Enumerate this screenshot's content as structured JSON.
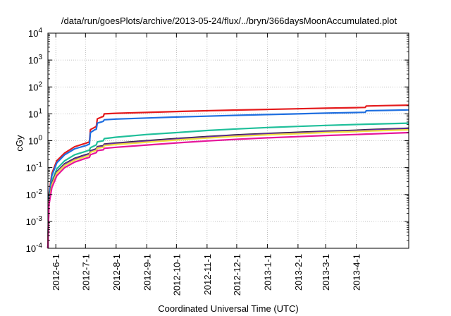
{
  "chart_data": {
    "type": "line",
    "title": "/data/run/goesPlots/archive/2013-05-24/flux/../bryn/366daysMoonAccumulated.plot",
    "xlabel": "Coordinated Universal Time (UTC)",
    "ylabel": "cGy",
    "yscale": "log",
    "ylim": [
      0.0001,
      10000
    ],
    "xlim": [
      "2012-05-24",
      "2013-05-24"
    ],
    "grid": true,
    "x_tick_labels": [
      "2012-6-1",
      "2012-7-1",
      "2012-8-1",
      "2012-9-1",
      "2012-10-1",
      "2012-11-1",
      "2012-12-1",
      "2013-1-1",
      "2013-2-1",
      "2013-3-1",
      "2013-4-1"
    ],
    "y_ticks": [
      {
        "base": "10",
        "exp": "-4",
        "value": 0.0001
      },
      {
        "base": "10",
        "exp": "-3",
        "value": 0.001
      },
      {
        "base": "10",
        "exp": "-2",
        "value": 0.01
      },
      {
        "base": "10",
        "exp": "-1",
        "value": 0.1
      },
      {
        "base": "10",
        "exp": "0",
        "value": 1
      },
      {
        "base": "10",
        "exp": "1",
        "value": 10
      },
      {
        "base": "10",
        "exp": "2",
        "value": 100
      },
      {
        "base": "10",
        "exp": "3",
        "value": 1000
      },
      {
        "base": "10",
        "exp": "4",
        "value": 10000
      }
    ],
    "series": [
      {
        "color": "#e41a1c",
        "points": [
          [
            "2012-05-24",
            0.0001
          ],
          [
            "2012-05-25",
            0.01
          ],
          [
            "2012-05-28",
            0.06
          ],
          [
            "2012-06-02",
            0.18
          ],
          [
            "2012-06-10",
            0.35
          ],
          [
            "2012-06-20",
            0.6
          ],
          [
            "2012-07-01",
            0.8
          ],
          [
            "2012-07-05",
            0.9
          ],
          [
            "2012-07-06",
            2.6
          ],
          [
            "2012-07-10",
            3.1
          ],
          [
            "2012-07-12",
            3.4
          ],
          [
            "2012-07-13",
            6.5
          ],
          [
            "2012-07-17",
            7.5
          ],
          [
            "2012-07-19",
            8.0
          ],
          [
            "2012-07-20",
            10.0
          ],
          [
            "2012-08-01",
            10.5
          ],
          [
            "2012-09-01",
            11.3
          ],
          [
            "2012-10-01",
            12.2
          ],
          [
            "2012-11-01",
            13.0
          ],
          [
            "2012-12-01",
            13.8
          ],
          [
            "2013-01-01",
            14.6
          ],
          [
            "2013-02-01",
            15.4
          ],
          [
            "2013-03-01",
            16.2
          ],
          [
            "2013-04-01",
            17.0
          ],
          [
            "2013-04-10",
            17.3
          ],
          [
            "2013-04-11",
            19.5
          ],
          [
            "2013-05-01",
            20.3
          ],
          [
            "2013-05-24",
            21.0
          ]
        ]
      },
      {
        "color": "#1f6fe0",
        "points": [
          [
            "2012-05-24",
            0.0001
          ],
          [
            "2012-05-25",
            0.008
          ],
          [
            "2012-05-28",
            0.05
          ],
          [
            "2012-06-02",
            0.15
          ],
          [
            "2012-06-10",
            0.3
          ],
          [
            "2012-06-20",
            0.5
          ],
          [
            "2012-07-01",
            0.65
          ],
          [
            "2012-07-05",
            0.75
          ],
          [
            "2012-07-06",
            2.0
          ],
          [
            "2012-07-10",
            2.5
          ],
          [
            "2012-07-12",
            2.7
          ],
          [
            "2012-07-13",
            4.5
          ],
          [
            "2012-07-17",
            5.0
          ],
          [
            "2012-07-19",
            5.3
          ],
          [
            "2012-07-20",
            6.0
          ],
          [
            "2012-08-01",
            6.4
          ],
          [
            "2012-09-01",
            7.0
          ],
          [
            "2012-10-01",
            7.6
          ],
          [
            "2012-11-01",
            8.2
          ],
          [
            "2012-12-01",
            8.8
          ],
          [
            "2013-01-01",
            9.4
          ],
          [
            "2013-02-01",
            10.0
          ],
          [
            "2013-03-01",
            10.6
          ],
          [
            "2013-04-01",
            11.2
          ],
          [
            "2013-04-10",
            11.4
          ],
          [
            "2013-04-11",
            13.0
          ],
          [
            "2013-05-01",
            13.4
          ],
          [
            "2013-05-24",
            14.0
          ]
        ]
      },
      {
        "color": "#1fbf9a",
        "points": [
          [
            "2012-05-24",
            0.0001
          ],
          [
            "2012-05-25",
            0.006
          ],
          [
            "2012-05-28",
            0.03
          ],
          [
            "2012-06-02",
            0.09
          ],
          [
            "2012-06-10",
            0.18
          ],
          [
            "2012-06-20",
            0.3
          ],
          [
            "2012-07-01",
            0.4
          ],
          [
            "2012-07-05",
            0.45
          ],
          [
            "2012-07-06",
            0.55
          ],
          [
            "2012-07-12",
            0.7
          ],
          [
            "2012-07-13",
            0.9
          ],
          [
            "2012-07-19",
            1.0
          ],
          [
            "2012-07-20",
            1.2
          ],
          [
            "2012-08-01",
            1.35
          ],
          [
            "2012-09-01",
            1.7
          ],
          [
            "2012-10-01",
            2.0
          ],
          [
            "2012-11-01",
            2.4
          ],
          [
            "2012-12-01",
            2.75
          ],
          [
            "2013-01-01",
            3.1
          ],
          [
            "2013-02-01",
            3.4
          ],
          [
            "2013-03-01",
            3.7
          ],
          [
            "2013-04-01",
            4.0
          ],
          [
            "2013-04-11",
            4.1
          ],
          [
            "2013-05-24",
            4.5
          ]
        ]
      },
      {
        "color": "#1a1a1a",
        "points": [
          [
            "2012-05-24",
            0.0001
          ],
          [
            "2012-05-25",
            0.005
          ],
          [
            "2012-05-28",
            0.025
          ],
          [
            "2012-06-02",
            0.07
          ],
          [
            "2012-06-10",
            0.14
          ],
          [
            "2012-06-20",
            0.22
          ],
          [
            "2012-07-01",
            0.3
          ],
          [
            "2012-07-05",
            0.33
          ],
          [
            "2012-07-06",
            0.42
          ],
          [
            "2012-07-12",
            0.5
          ],
          [
            "2012-07-13",
            0.6
          ],
          [
            "2012-07-19",
            0.65
          ],
          [
            "2012-07-20",
            0.75
          ],
          [
            "2012-08-01",
            0.82
          ],
          [
            "2012-09-01",
            1.0
          ],
          [
            "2012-10-01",
            1.2
          ],
          [
            "2012-11-01",
            1.42
          ],
          [
            "2012-12-01",
            1.65
          ],
          [
            "2013-01-01",
            1.85
          ],
          [
            "2013-02-01",
            2.05
          ],
          [
            "2013-03-01",
            2.25
          ],
          [
            "2013-04-01",
            2.45
          ],
          [
            "2013-04-11",
            2.55
          ],
          [
            "2013-05-24",
            2.9
          ]
        ]
      },
      {
        "color": "#6a2ca8",
        "points": [
          [
            "2012-05-24",
            0.0001
          ],
          [
            "2012-05-25",
            0.0048
          ],
          [
            "2012-05-28",
            0.024
          ],
          [
            "2012-06-02",
            0.068
          ],
          [
            "2012-06-10",
            0.135
          ],
          [
            "2012-06-20",
            0.21
          ],
          [
            "2012-07-01",
            0.29
          ],
          [
            "2012-07-05",
            0.32
          ],
          [
            "2012-07-06",
            0.4
          ],
          [
            "2012-07-12",
            0.48
          ],
          [
            "2012-07-13",
            0.58
          ],
          [
            "2012-07-19",
            0.62
          ],
          [
            "2012-07-20",
            0.72
          ],
          [
            "2012-08-01",
            0.78
          ],
          [
            "2012-09-01",
            0.96
          ],
          [
            "2012-10-01",
            1.15
          ],
          [
            "2012-11-01",
            1.37
          ],
          [
            "2012-12-01",
            1.58
          ],
          [
            "2013-01-01",
            1.78
          ],
          [
            "2013-02-01",
            1.97
          ],
          [
            "2013-03-01",
            2.17
          ],
          [
            "2013-04-01",
            2.37
          ],
          [
            "2013-04-11",
            2.46
          ],
          [
            "2013-05-24",
            2.8
          ]
        ]
      },
      {
        "color": "#f0e040",
        "points": [
          [
            "2012-05-24",
            0.0001
          ],
          [
            "2012-05-25",
            0.0045
          ],
          [
            "2012-05-28",
            0.022
          ],
          [
            "2012-06-02",
            0.062
          ],
          [
            "2012-06-10",
            0.12
          ],
          [
            "2012-06-20",
            0.19
          ],
          [
            "2012-07-01",
            0.26
          ],
          [
            "2012-07-05",
            0.29
          ],
          [
            "2012-07-06",
            0.37
          ],
          [
            "2012-07-12",
            0.44
          ],
          [
            "2012-07-13",
            0.53
          ],
          [
            "2012-07-19",
            0.57
          ],
          [
            "2012-07-20",
            0.66
          ],
          [
            "2012-08-01",
            0.72
          ],
          [
            "2012-09-01",
            0.88
          ],
          [
            "2012-10-01",
            1.06
          ],
          [
            "2012-11-01",
            1.26
          ],
          [
            "2012-12-01",
            1.46
          ],
          [
            "2013-01-01",
            1.65
          ],
          [
            "2013-02-01",
            1.83
          ],
          [
            "2013-03-01",
            2.01
          ],
          [
            "2013-04-01",
            2.19
          ],
          [
            "2013-04-11",
            2.28
          ],
          [
            "2013-05-24",
            2.55
          ]
        ]
      },
      {
        "color": "#e6169b",
        "points": [
          [
            "2012-05-24",
            0.0001
          ],
          [
            "2012-05-25",
            0.004
          ],
          [
            "2012-05-28",
            0.018
          ],
          [
            "2012-06-02",
            0.05
          ],
          [
            "2012-06-10",
            0.1
          ],
          [
            "2012-06-20",
            0.16
          ],
          [
            "2012-07-01",
            0.22
          ],
          [
            "2012-07-05",
            0.24
          ],
          [
            "2012-07-06",
            0.3
          ],
          [
            "2012-07-12",
            0.36
          ],
          [
            "2012-07-13",
            0.43
          ],
          [
            "2012-07-19",
            0.46
          ],
          [
            "2012-07-20",
            0.52
          ],
          [
            "2012-08-01",
            0.57
          ],
          [
            "2012-09-01",
            0.69
          ],
          [
            "2012-10-01",
            0.83
          ],
          [
            "2012-11-01",
            0.98
          ],
          [
            "2012-12-01",
            1.13
          ],
          [
            "2013-01-01",
            1.28
          ],
          [
            "2013-02-01",
            1.42
          ],
          [
            "2013-03-01",
            1.56
          ],
          [
            "2013-04-01",
            1.7
          ],
          [
            "2013-04-11",
            1.76
          ],
          [
            "2013-05-24",
            2.0
          ]
        ]
      }
    ]
  }
}
